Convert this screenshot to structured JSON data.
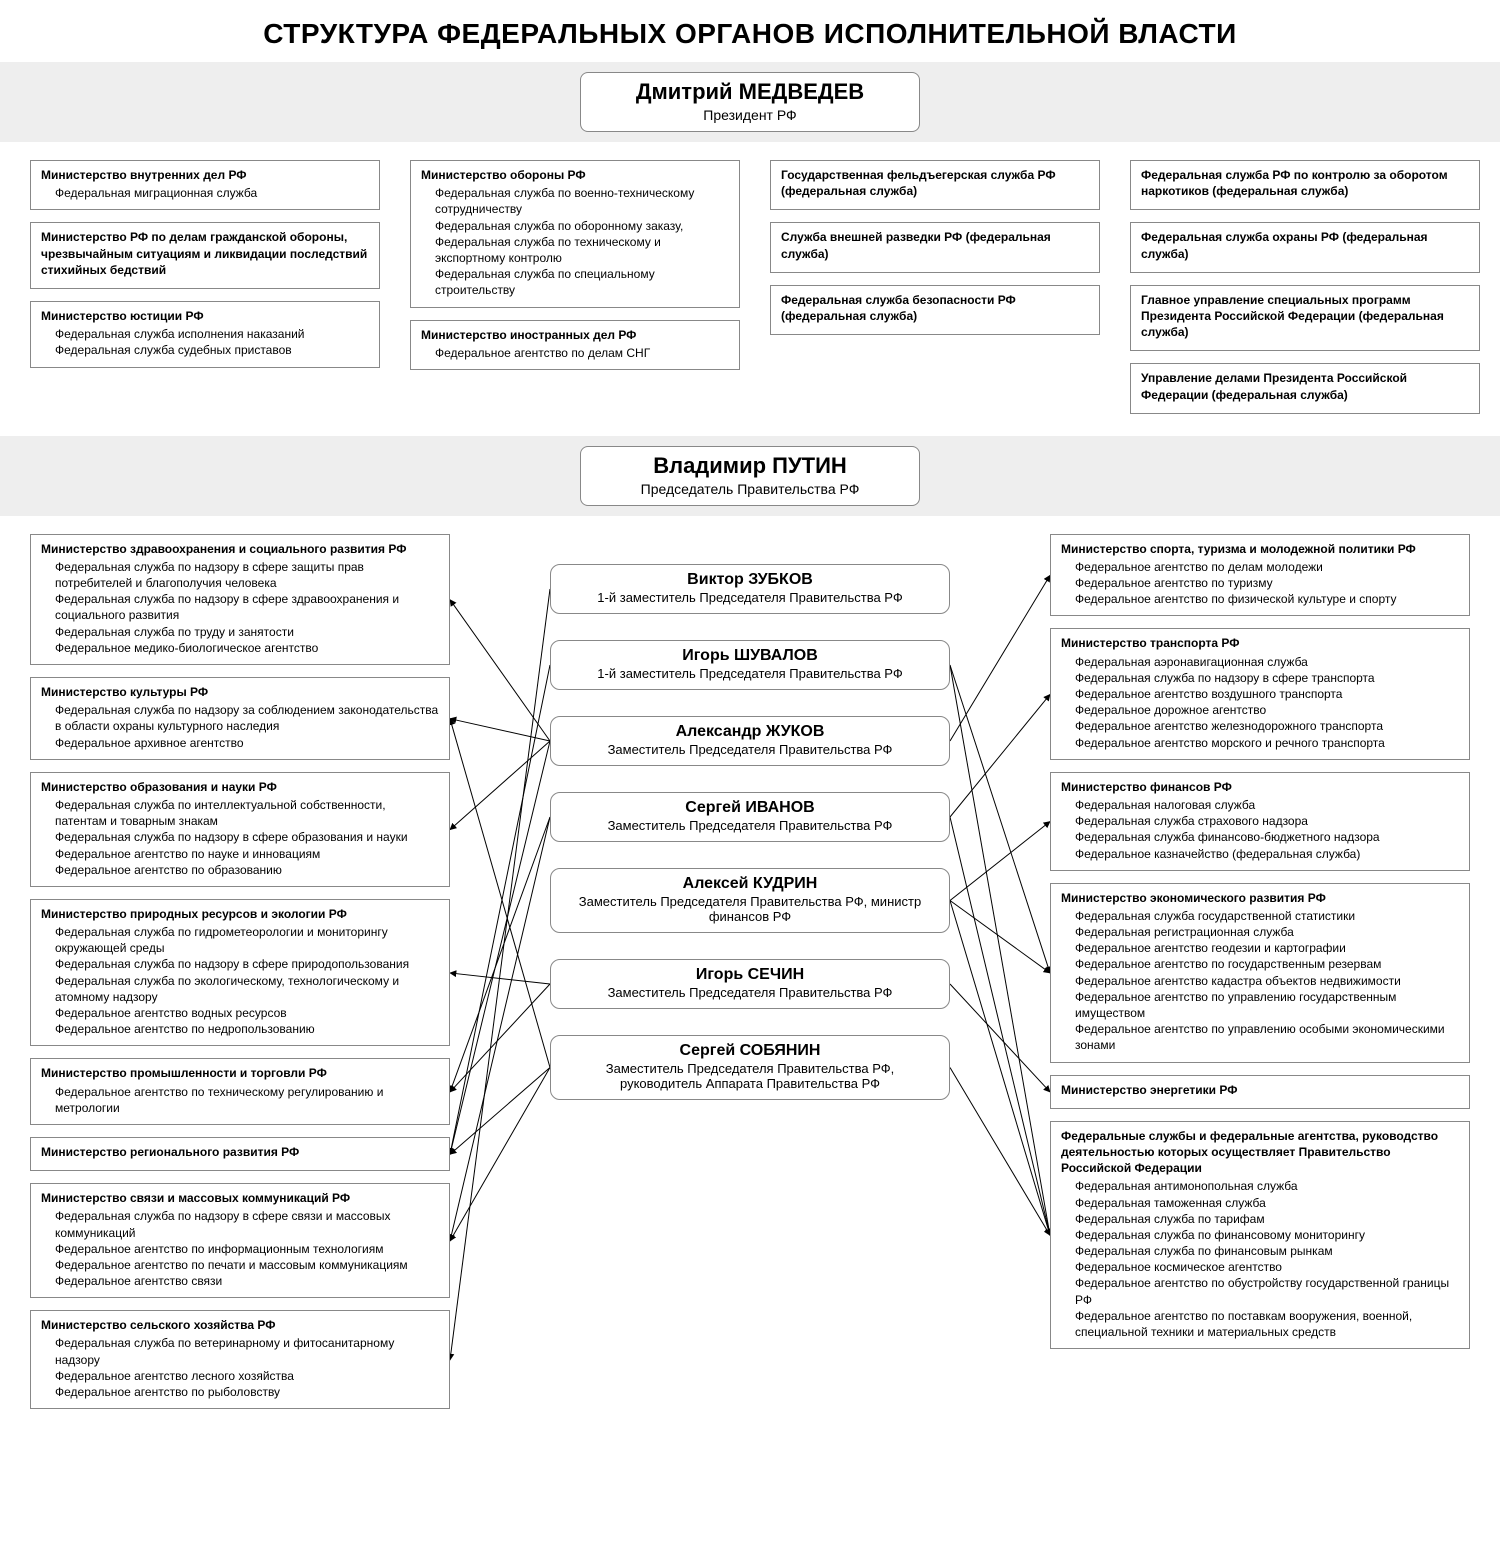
{
  "title": "СТРУКТУРА ФЕДЕРАЛЬНЫХ ОРГАНОВ ИСПОЛНИТЕЛЬНОЙ ВЛАСТИ",
  "colors": {
    "background": "#ffffff",
    "band": "#eeeeee",
    "border": "#888888",
    "text": "#000000",
    "arrow": "#000000"
  },
  "president": {
    "name": "Дмитрий МЕДВЕДЕВ",
    "title": "Президент РФ"
  },
  "prime_minister": {
    "name": "Владимир ПУТИН",
    "title": "Председатель Правительства РФ"
  },
  "top_columns": [
    [
      {
        "title": "Министерство внутренних дел РФ",
        "subs": [
          "Федеральная миграционная служба"
        ]
      },
      {
        "title": "Министерство РФ по делам гражданской обороны, чрезвычайным ситуациям и ликвидации последствий стихийных бедствий",
        "subs": []
      },
      {
        "title": "Министерство юстиции РФ",
        "subs": [
          "Федеральная служба исполнения наказаний",
          "Федеральная служба судебных приставов"
        ]
      }
    ],
    [
      {
        "title": "Министерство обороны РФ",
        "subs": [
          "Федеральная служба по военно-техническому сотрудничеству",
          "Федеральная служба по оборонному заказу,",
          "Федеральная служба по техническому и  экспортному контролю",
          "Федеральная служба по специальному строительству"
        ]
      },
      {
        "title": "Министерство иностранных дел РФ",
        "subs": [
          "Федеральное агентство по делам СНГ"
        ]
      }
    ],
    [
      {
        "title": "Государственная фельдъегерская служба РФ (федеральная служба)",
        "subs": []
      },
      {
        "title": "Служба внешней разведки РФ (федеральная служба)",
        "subs": []
      },
      {
        "title": "Федеральная служба безопасности РФ (федеральная служба)",
        "subs": []
      }
    ],
    [
      {
        "title": "Федеральная служба РФ по контролю за оборотом наркотиков (федеральная служба)",
        "subs": []
      },
      {
        "title": "Федеральная служба охраны РФ (федеральная служба)",
        "subs": []
      },
      {
        "title": "Главное управление специальных программ Президента Российской Федерации (федеральная служба)",
        "subs": []
      },
      {
        "title": "Управление делами Президента Российской Федерации (федеральная служба)",
        "subs": []
      }
    ]
  ],
  "deputies": [
    {
      "name": "Виктор ЗУБКОВ",
      "title": "1-й заместитель Председателя Правительства РФ"
    },
    {
      "name": "Игорь ШУВАЛОВ",
      "title": "1-й заместитель Председателя Правительства РФ"
    },
    {
      "name": "Александр ЖУКОВ",
      "title": "Заместитель Председателя Правительства РФ"
    },
    {
      "name": "Сергей ИВАНОВ",
      "title": "Заместитель Председателя Правительства РФ"
    },
    {
      "name": "Алексей КУДРИН",
      "title": "Заместитель Председателя Правительства РФ, министр финансов РФ"
    },
    {
      "name": "Игорь СЕЧИН",
      "title": "Заместитель Председателя Правительства РФ"
    },
    {
      "name": "Сергей СОБЯНИН",
      "title": "Заместитель Председателя Правительства РФ, руководитель Аппарата Правительства РФ"
    }
  ],
  "left_ministries": [
    {
      "title": "Министерство здравоохранения и социального развития РФ",
      "subs": [
        "Федеральная служба по надзору в сфере защиты прав потребителей и благополучия человека",
        "Федеральная служба по надзору в сфере здравоохранения и социального развития",
        "Федеральная служба по труду и занятости",
        "Федеральное медико-биологическое агентство"
      ]
    },
    {
      "title": "Министерство культуры РФ",
      "subs": [
        "Федеральная служба по надзору за соблюдением законодательства в области охраны культурного наследия",
        "Федеральное архивное агентство"
      ]
    },
    {
      "title": "Министерство образования и науки РФ",
      "subs": [
        "Федеральная служба по интеллектуальной собственности, патентам и товарным знакам",
        "Федеральная служба по надзору в сфере образования и  науки",
        "Федеральное агентство по науке и инновациям",
        "Федеральное агентство по образованию"
      ]
    },
    {
      "title": "Министерство природных ресурсов и экологии РФ",
      "subs": [
        "Федеральная служба по гидрометеорологии и мониторингу окружающей среды",
        "Федеральная служба по надзору в сфере природопользования",
        "Федеральная служба по экологическому, технологическому и  атомному надзору",
        "Федеральное агентство водных ресурсов",
        "Федеральное агентство по недропользованию"
      ]
    },
    {
      "title": "Министерство промышленности и торговли РФ",
      "subs": [
        "Федеральное агентство по техническому регулированию и  метрологии"
      ]
    },
    {
      "title": "Министерство регионального развития РФ",
      "subs": []
    },
    {
      "title": "Министерство связи и массовых коммуникаций РФ",
      "subs": [
        "Федеральная служба по надзору в сфере связи и  массовых коммуникаций",
        "Федеральное агентство по информационным технологиям",
        "Федеральное агентство по печати и массовым коммуникациям",
        "Федеральное агентство связи"
      ]
    },
    {
      "title": "Министерство сельского хозяйства РФ",
      "subs": [
        "Федеральная служба по ветеринарному и  фитосанитарному надзору",
        "Федеральное агентство лесного хозяйства",
        "Федеральное агентство по рыболовству"
      ]
    }
  ],
  "right_ministries": [
    {
      "title": "Министерство спорта, туризма и молодежной политики РФ",
      "subs": [
        "Федеральное агентство по делам молодежи",
        "Федеральное агентство по туризму",
        "Федеральное агентство по физической культуре и  спорту"
      ]
    },
    {
      "title": "Министерство транспорта РФ",
      "subs": [
        "Федеральная аэронавигационная служба",
        "Федеральная служба по надзору в сфере транспорта",
        "Федеральное агентство воздушного транспорта",
        "Федеральное дорожное агентство",
        "Федеральное агентство железнодорожного транспорта",
        "Федеральное агентство морского и речного транспорта"
      ]
    },
    {
      "title": "Министерство финансов РФ",
      "subs": [
        "Федеральная налоговая служба",
        "Федеральная служба страхового надзора",
        "Федеральная служба финансово-бюджетного надзора",
        "Федеральное казначейство (федеральная служба)"
      ]
    },
    {
      "title": "Министерство экономического развития РФ",
      "subs": [
        "Федеральная служба государственной статистики",
        "Федеральная регистрационная служба",
        "Федеральное агентство геодезии и картографии",
        "Федеральное агентство по государственным резервам",
        "Федеральное агентство кадастра объектов недвижимости",
        "Федеральное агентство по управлению государственным имуществом",
        "Федеральное агентство по управлению особыми экономическими зонами"
      ]
    },
    {
      "title": "Министерство энергетики РФ",
      "subs": []
    },
    {
      "title": "Федеральные службы и федеральные агентства, руководство деятельностью которых осуществляет Правительство Российской Федерации",
      "subs": [
        "Федеральная антимонопольная служба",
        "Федеральная таможенная служба",
        "Федеральная служба по тарифам",
        "Федеральная служба по финансовому мониторингу",
        "Федеральная служба по финансовым рынкам",
        "Федеральное космическое агентство",
        "Федеральное агентство по обустройству государственной границы РФ",
        "Федеральное агентство по поставкам вооружения, военной, специальной техники и материальных средств"
      ]
    }
  ],
  "edges": [
    {
      "from": "dep-0",
      "to": "left-7"
    },
    {
      "from": "dep-1",
      "to": "left-5"
    },
    {
      "from": "dep-1",
      "to": "right-3"
    },
    {
      "from": "dep-1",
      "to": "right-5"
    },
    {
      "from": "dep-2",
      "to": "left-0"
    },
    {
      "from": "dep-2",
      "to": "left-1"
    },
    {
      "from": "dep-2",
      "to": "left-2"
    },
    {
      "from": "dep-2",
      "to": "left-5"
    },
    {
      "from": "dep-2",
      "to": "right-0"
    },
    {
      "from": "dep-3",
      "to": "left-4"
    },
    {
      "from": "dep-3",
      "to": "left-6"
    },
    {
      "from": "dep-3",
      "to": "right-1"
    },
    {
      "from": "dep-3",
      "to": "right-5"
    },
    {
      "from": "dep-4",
      "to": "right-2"
    },
    {
      "from": "dep-4",
      "to": "right-3"
    },
    {
      "from": "dep-4",
      "to": "right-5"
    },
    {
      "from": "dep-5",
      "to": "left-3"
    },
    {
      "from": "dep-5",
      "to": "left-4"
    },
    {
      "from": "dep-5",
      "to": "right-4"
    },
    {
      "from": "dep-6",
      "to": "left-1"
    },
    {
      "from": "dep-6",
      "to": "left-5"
    },
    {
      "from": "dep-6",
      "to": "left-6"
    },
    {
      "from": "dep-6",
      "to": "right-5"
    }
  ]
}
